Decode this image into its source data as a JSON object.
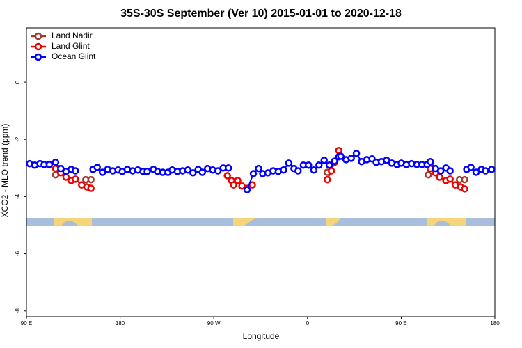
{
  "chart_data": {
    "type": "line",
    "title": "35S-30S September (Ver 10)   2015-01-01 to 2020-12-18",
    "x_label": "Longitude",
    "y_label": "XCO2 - MLO trend (ppm)",
    "xlim": [
      90,
      540
    ],
    "ylim": [
      -8.2,
      1.9
    ],
    "xticks": [
      {
        "value": 90,
        "label": "90 E"
      },
      180,
      {
        "value": 270,
        "label": "90 W"
      },
      {
        "value": 360,
        "label": "0"
      },
      {
        "value": 450,
        "label": "90 E"
      },
      {
        "value": 540,
        "label": "180"
      }
    ],
    "yticks": [
      0,
      -2,
      -4,
      -6,
      -8
    ],
    "legend": "top-left",
    "series": [
      {
        "name": "Land Nadir",
        "color": "#9e3a32",
        "x": [
          118,
          null,
          147,
          152,
          null,
          379,
          null,
          476,
          null,
          506,
          511
        ],
        "values": [
          -3.24,
          null,
          -3.41,
          -3.41,
          null,
          -3.15,
          null,
          -3.24,
          null,
          -3.41,
          -3.41
        ]
      },
      {
        "name": "Land Glint",
        "color": "#ee0000",
        "x": [
          118,
          123,
          128,
          133,
          137,
          143,
          148,
          152,
          null,
          283,
          287,
          289,
          293,
          297,
          307,
          null,
          379,
          383,
          386,
          390,
          null,
          478,
          483,
          487,
          493,
          497,
          502,
          507,
          511
        ],
        "values": [
          -3.02,
          -3.17,
          -3.32,
          -3.44,
          -3.39,
          -3.59,
          -3.66,
          -3.71,
          null,
          -3.27,
          -3.44,
          -3.59,
          -3.44,
          -3.63,
          -3.59,
          null,
          -3.41,
          -3.1,
          -2.8,
          -2.39,
          null,
          -3.02,
          -3.17,
          -3.32,
          -3.44,
          -3.39,
          -3.59,
          -3.66,
          -3.73
        ]
      },
      {
        "name": "Ocean Glint",
        "color": "#0000ff",
        "x": [
          93,
          98,
          103,
          107,
          112,
          118,
          123,
          128,
          133,
          137,
          null,
          154,
          158,
          163,
          168,
          173,
          178,
          182,
          187,
          192,
          197,
          202,
          206,
          212,
          216,
          221,
          226,
          230,
          235,
          240,
          245,
          250,
          255,
          259,
          264,
          269,
          274,
          279,
          284,
          null,
          302,
          308,
          313,
          317,
          322,
          327,
          332,
          337,
          342,
          347,
          351,
          356,
          361,
          366,
          371,
          376,
          381,
          386,
          390,
          392,
          397,
          402,
          407,
          412,
          417,
          422,
          426,
          431,
          436,
          441,
          446,
          450,
          455,
          460,
          465,
          470,
          475,
          478,
          483,
          488,
          493,
          497,
          null,
          513,
          517,
          522,
          527,
          531,
          537
        ],
        "values": [
          -2.85,
          -2.9,
          -2.85,
          -2.88,
          -2.88,
          -2.8,
          -3.02,
          -3.12,
          -3.05,
          -3.1,
          null,
          -3.05,
          -2.98,
          -3.15,
          -3.05,
          -3.1,
          -3.07,
          -3.12,
          -3.05,
          -3.1,
          -3.07,
          -3.12,
          -3.12,
          -3.05,
          -3.12,
          -3.15,
          -3.15,
          -3.07,
          -3.12,
          -3.1,
          -3.07,
          -3.17,
          -3.05,
          -3.15,
          -3.02,
          -3.07,
          -3.1,
          -3.0,
          -3.0,
          null,
          -3.76,
          -3.2,
          -3.02,
          -3.2,
          -3.17,
          -3.1,
          -3.12,
          -3.07,
          -2.83,
          -3.02,
          -3.1,
          -2.9,
          -2.9,
          -3.07,
          -2.9,
          -2.73,
          -2.9,
          -2.76,
          -2.61,
          -2.59,
          -2.71,
          -2.66,
          -2.49,
          -2.78,
          -2.71,
          -2.68,
          -2.8,
          -2.78,
          -2.73,
          -2.83,
          -2.88,
          -2.83,
          -2.88,
          -2.85,
          -2.88,
          -2.88,
          -2.88,
          -2.78,
          -3.02,
          -3.1,
          -3.0,
          -3.1,
          null,
          -3.05,
          -2.98,
          -3.15,
          -3.05,
          -3.1,
          -3.05
        ]
      }
    ]
  }
}
